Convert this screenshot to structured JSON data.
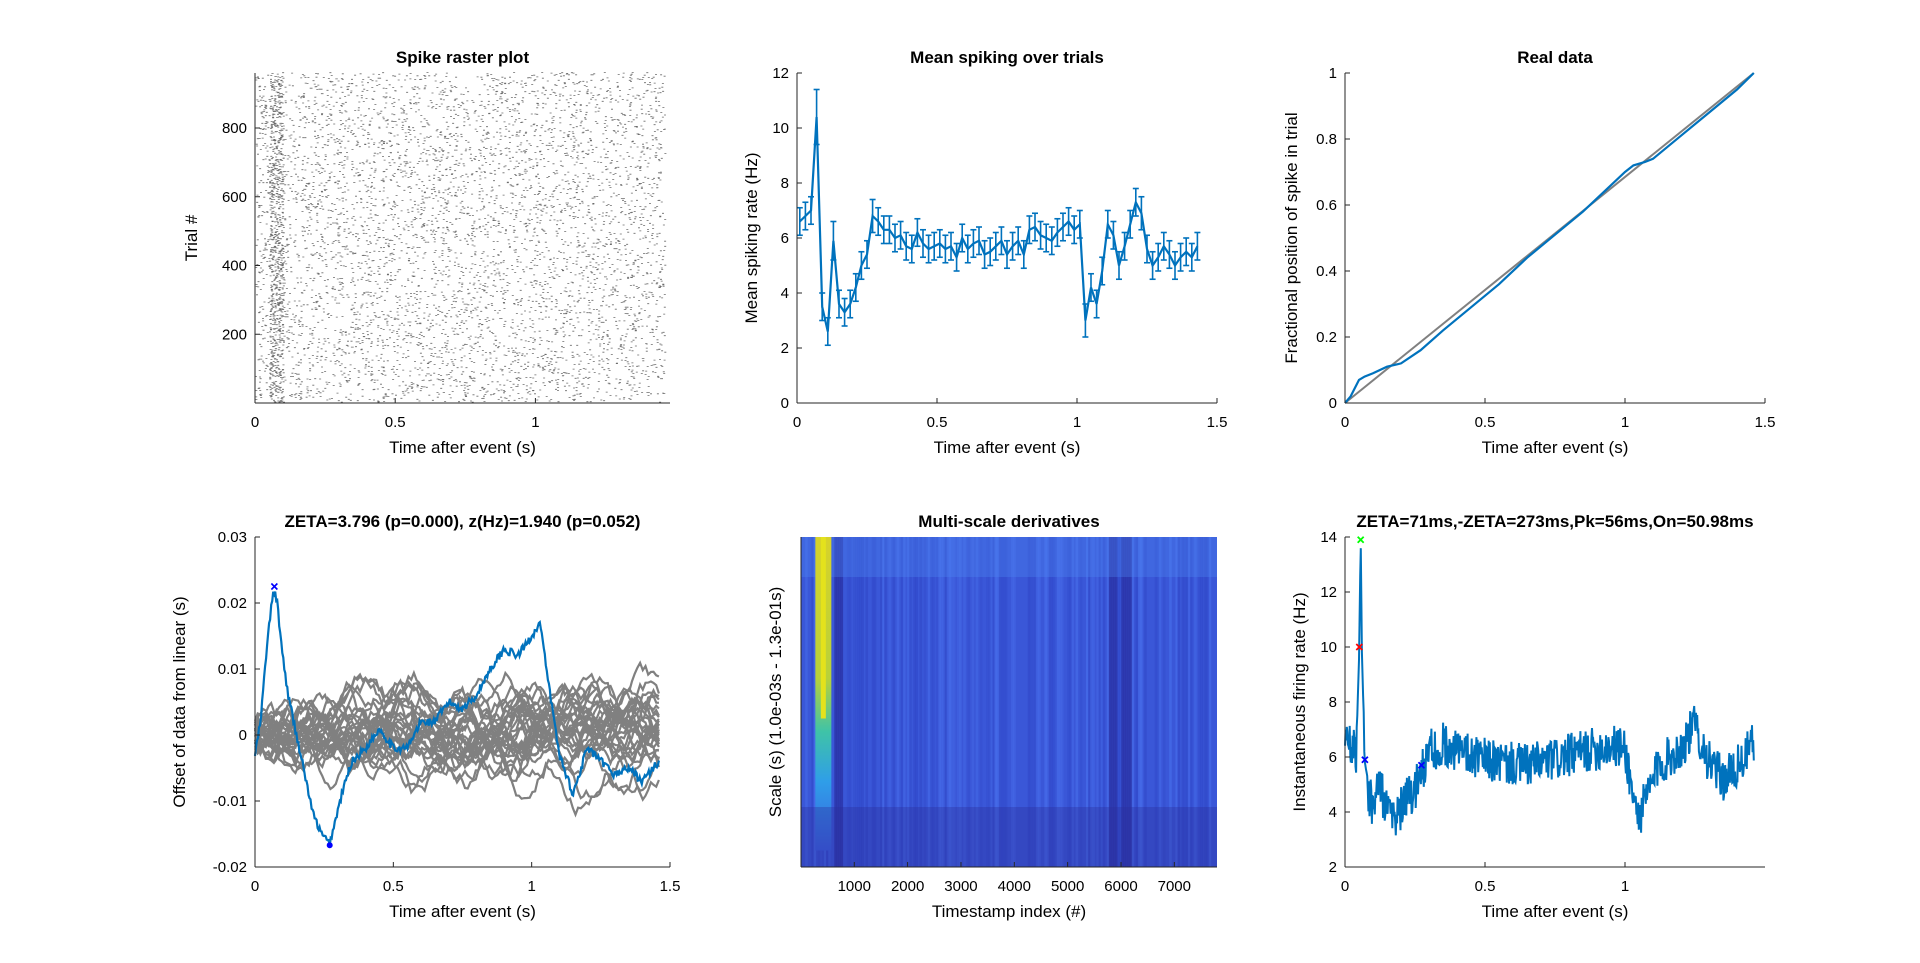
{
  "colors": {
    "blue": "#0072BD",
    "gray": "#808080",
    "axis": "#262626",
    "marker_blue": "#0000FF",
    "marker_red": "#FF0000",
    "marker_green": "#00FF00"
  },
  "chart_data": [
    {
      "id": "raster",
      "type": "scatter",
      "title": "Spike raster plot",
      "xlabel": "Time after event (s)",
      "ylabel": "Trial #",
      "xlim": [
        0,
        1.48
      ],
      "ylim": [
        0,
        960
      ],
      "xticks": [
        0,
        0.5,
        1
      ],
      "xticklabels": [
        "0",
        "0.5",
        "1"
      ],
      "yticks": [
        200,
        400,
        600,
        800
      ],
      "yticklabels": [
        "200",
        "400",
        "600",
        "800"
      ],
      "n_trials": 960,
      "mean_rate_hz": 5.8
    },
    {
      "id": "mean",
      "type": "line",
      "title": "Mean spiking over trials",
      "xlabel": "Time after event (s)",
      "ylabel": "Mean spiking rate (Hz)",
      "xlim": [
        0,
        1.5
      ],
      "ylim": [
        0,
        12
      ],
      "xticks": [
        0,
        0.5,
        1,
        1.5
      ],
      "xticklabels": [
        "0",
        "0.5",
        "1",
        "1.5"
      ],
      "yticks": [
        0,
        2,
        4,
        6,
        8,
        10,
        12
      ],
      "yticklabels": [
        "0",
        "2",
        "4",
        "6",
        "8",
        "10",
        "12"
      ],
      "x": [
        0.01,
        0.03,
        0.05,
        0.07,
        0.09,
        0.11,
        0.13,
        0.15,
        0.17,
        0.19,
        0.21,
        0.23,
        0.25,
        0.27,
        0.29,
        0.31,
        0.33,
        0.35,
        0.37,
        0.39,
        0.41,
        0.43,
        0.45,
        0.47,
        0.49,
        0.51,
        0.53,
        0.55,
        0.57,
        0.59,
        0.61,
        0.63,
        0.65,
        0.67,
        0.69,
        0.71,
        0.73,
        0.75,
        0.77,
        0.79,
        0.81,
        0.83,
        0.85,
        0.87,
        0.89,
        0.91,
        0.93,
        0.95,
        0.97,
        0.99,
        1.01,
        1.03,
        1.05,
        1.07,
        1.09,
        1.11,
        1.13,
        1.15,
        1.17,
        1.19,
        1.21,
        1.23,
        1.25,
        1.27,
        1.29,
        1.31,
        1.33,
        1.35,
        1.37,
        1.39,
        1.41,
        1.43
      ],
      "y": [
        6.6,
        6.8,
        7.0,
        10.4,
        3.5,
        2.6,
        5.9,
        3.6,
        3.3,
        3.6,
        4.2,
        5.0,
        5.4,
        6.8,
        6.6,
        6.3,
        6.3,
        6.0,
        6.1,
        5.7,
        5.6,
        6.2,
        5.8,
        5.6,
        5.7,
        5.8,
        5.6,
        5.7,
        5.3,
        6.0,
        5.6,
        5.8,
        5.9,
        5.4,
        5.5,
        5.7,
        5.9,
        5.4,
        5.7,
        5.9,
        5.4,
        6.3,
        6.4,
        6.1,
        6.0,
        5.9,
        6.2,
        6.4,
        6.6,
        6.3,
        6.5,
        3.0,
        4.2,
        3.6,
        4.8,
        6.5,
        6.1,
        5.0,
        5.7,
        6.5,
        7.3,
        6.9,
        5.6,
        5.0,
        5.3,
        5.7,
        5.4,
        5.0,
        5.3,
        5.5,
        5.3,
        5.7
      ],
      "err": [
        0.5,
        0.5,
        0.5,
        1.0,
        0.5,
        0.5,
        0.7,
        0.5,
        0.5,
        0.5,
        0.5,
        0.5,
        0.5,
        0.6,
        0.5,
        0.5,
        0.5,
        0.5,
        0.5,
        0.5,
        0.5,
        0.5,
        0.5,
        0.5,
        0.5,
        0.5,
        0.5,
        0.5,
        0.5,
        0.5,
        0.5,
        0.5,
        0.5,
        0.5,
        0.5,
        0.5,
        0.5,
        0.5,
        0.5,
        0.5,
        0.5,
        0.5,
        0.5,
        0.5,
        0.5,
        0.5,
        0.5,
        0.5,
        0.5,
        0.5,
        0.5,
        0.6,
        0.5,
        0.5,
        0.5,
        0.5,
        0.5,
        0.5,
        0.5,
        0.5,
        0.5,
        0.6,
        0.5,
        0.5,
        0.5,
        0.5,
        0.5,
        0.5,
        0.5,
        0.5,
        0.5,
        0.5
      ]
    },
    {
      "id": "real",
      "type": "line",
      "title": "Real data",
      "xlabel": "Time after event (s)",
      "ylabel": "Fractional position of spike in trial",
      "xlim": [
        0,
        1.5
      ],
      "ylim": [
        0,
        1
      ],
      "xticks": [
        0,
        0.5,
        1,
        1.5
      ],
      "xticklabels": [
        "0",
        "0.5",
        "1",
        "1.5"
      ],
      "yticks": [
        0,
        0.2,
        0.4,
        0.6,
        0.8,
        1
      ],
      "yticklabels": [
        "0",
        "0.2",
        "0.4",
        "0.6",
        "0.8",
        "1"
      ],
      "series": [
        {
          "x": [
            0,
            1.46
          ],
          "y": [
            0,
            1
          ]
        },
        {
          "x": [
            0,
            0.02,
            0.05,
            0.07,
            0.1,
            0.15,
            0.2,
            0.27,
            0.35,
            0.45,
            0.55,
            0.65,
            0.75,
            0.85,
            0.95,
            1.0,
            1.03,
            1.07,
            1.1,
            1.2,
            1.3,
            1.4,
            1.46
          ],
          "y": [
            0,
            0.02,
            0.07,
            0.08,
            0.09,
            0.11,
            0.12,
            0.16,
            0.22,
            0.29,
            0.36,
            0.44,
            0.51,
            0.58,
            0.66,
            0.7,
            0.72,
            0.73,
            0.74,
            0.81,
            0.88,
            0.95,
            1.0
          ]
        }
      ]
    },
    {
      "id": "zeta",
      "type": "line",
      "title": "ZETA=3.796 (p=0.000), z(Hz)=1.940 (p=0.052)",
      "xlabel": "Time after event (s)",
      "ylabel": "Offset of data from linear (s)",
      "xlim": [
        0,
        1.5
      ],
      "ylim": [
        -0.02,
        0.03
      ],
      "xticks": [
        0,
        0.5,
        1,
        1.5
      ],
      "xticklabels": [
        "0",
        "0.5",
        "1",
        "1.5"
      ],
      "yticks": [
        -0.02,
        -0.01,
        0,
        0.01,
        0.02,
        0.03
      ],
      "yticklabels": [
        "-0.02",
        "-0.01",
        "0",
        "0.01",
        "0.02",
        "0.03"
      ],
      "real": {
        "x": [
          0,
          0.02,
          0.04,
          0.06,
          0.07,
          0.08,
          0.1,
          0.12,
          0.15,
          0.18,
          0.21,
          0.24,
          0.26,
          0.27,
          0.29,
          0.32,
          0.35,
          0.4,
          0.45,
          0.5,
          0.55,
          0.6,
          0.65,
          0.7,
          0.75,
          0.8,
          0.85,
          0.9,
          0.95,
          1.0,
          1.03,
          1.06,
          1.1,
          1.15,
          1.2,
          1.25,
          1.3,
          1.35,
          1.4,
          1.44,
          1.46
        ],
        "y": [
          -0.003,
          0.002,
          0.012,
          0.02,
          0.022,
          0.02,
          0.012,
          0.006,
          0.0,
          -0.006,
          -0.012,
          -0.015,
          -0.016,
          -0.0165,
          -0.013,
          -0.008,
          -0.004,
          -0.002,
          0.001,
          -0.002,
          -0.002,
          0.002,
          0.002,
          0.005,
          0.004,
          0.006,
          0.01,
          0.013,
          0.012,
          0.015,
          0.017,
          0.008,
          -0.003,
          -0.009,
          -0.002,
          -0.004,
          -0.006,
          -0.005,
          -0.007,
          -0.005,
          -0.004
        ]
      },
      "n_null": 30,
      "null_amplitude": 0.006,
      "markers": [
        {
          "x": 0.07,
          "y": 0.0225,
          "symbol": "x",
          "color": "#0000FF"
        },
        {
          "x": 0.27,
          "y": -0.0167,
          "symbol": "o",
          "color": "#0000FF"
        }
      ]
    },
    {
      "id": "msd",
      "type": "heatmap",
      "title": "Multi-scale derivatives",
      "xlabel": "Timestamp index (#)",
      "ylabel": "Scale (s) (1.0e-03s - 1.3e-01s)",
      "xlim": [
        1,
        7800
      ],
      "xticks": [
        1000,
        2000,
        3000,
        4000,
        5000,
        6000,
        7000
      ],
      "xticklabels": [
        "1000",
        "2000",
        "3000",
        "4000",
        "5000",
        "6000",
        "7000"
      ],
      "n_scales": 30,
      "hot_column": 420,
      "dark_columns": [
        700,
        5850,
        6100
      ]
    },
    {
      "id": "ifr",
      "type": "line",
      "title": "ZETA=71ms,-ZETA=273ms,Pk=56ms,On=50.98ms",
      "xlabel": "Time after event (s)",
      "ylabel": "Instantaneous firing rate (Hz)",
      "xlim": [
        0,
        1.5
      ],
      "ylim": [
        2,
        14
      ],
      "xticks": [
        0,
        0.5,
        1
      ],
      "xticklabels": [
        "0",
        "0.5",
        "1"
      ],
      "yticks": [
        2,
        4,
        6,
        8,
        10,
        12,
        14
      ],
      "yticklabels": [
        "2",
        "4",
        "6",
        "8",
        "10",
        "12",
        "14"
      ],
      "base": {
        "x": [
          0,
          0.02,
          0.04,
          0.05,
          0.056,
          0.06,
          0.07,
          0.08,
          0.1,
          0.12,
          0.15,
          0.18,
          0.22,
          0.26,
          0.3,
          0.35,
          0.45,
          0.55,
          0.65,
          0.75,
          0.85,
          0.95,
          1.0,
          1.03,
          1.05,
          1.08,
          1.12,
          1.2,
          1.25,
          1.3,
          1.35,
          1.4,
          1.46
        ],
        "y": [
          6.9,
          6.5,
          6.2,
          9.5,
          13.9,
          10.0,
          6.2,
          4.8,
          4.2,
          5.2,
          4.0,
          3.8,
          4.5,
          5.0,
          6.2,
          6.5,
          6.0,
          5.8,
          5.7,
          5.9,
          6.2,
          6.4,
          6.3,
          4.5,
          3.8,
          4.6,
          5.7,
          6.3,
          7.2,
          5.8,
          5.2,
          5.6,
          6.5
        ]
      },
      "markers": [
        {
          "x": 0.056,
          "y": 13.9,
          "symbol": "x",
          "color": "#00FF00"
        },
        {
          "x": 0.051,
          "y": 10.0,
          "symbol": "x",
          "color": "#FF0000"
        },
        {
          "x": 0.071,
          "y": 5.9,
          "symbol": "x",
          "color": "#0000FF"
        },
        {
          "x": 0.273,
          "y": 5.7,
          "symbol": "x",
          "color": "#0000FF"
        }
      ]
    }
  ]
}
